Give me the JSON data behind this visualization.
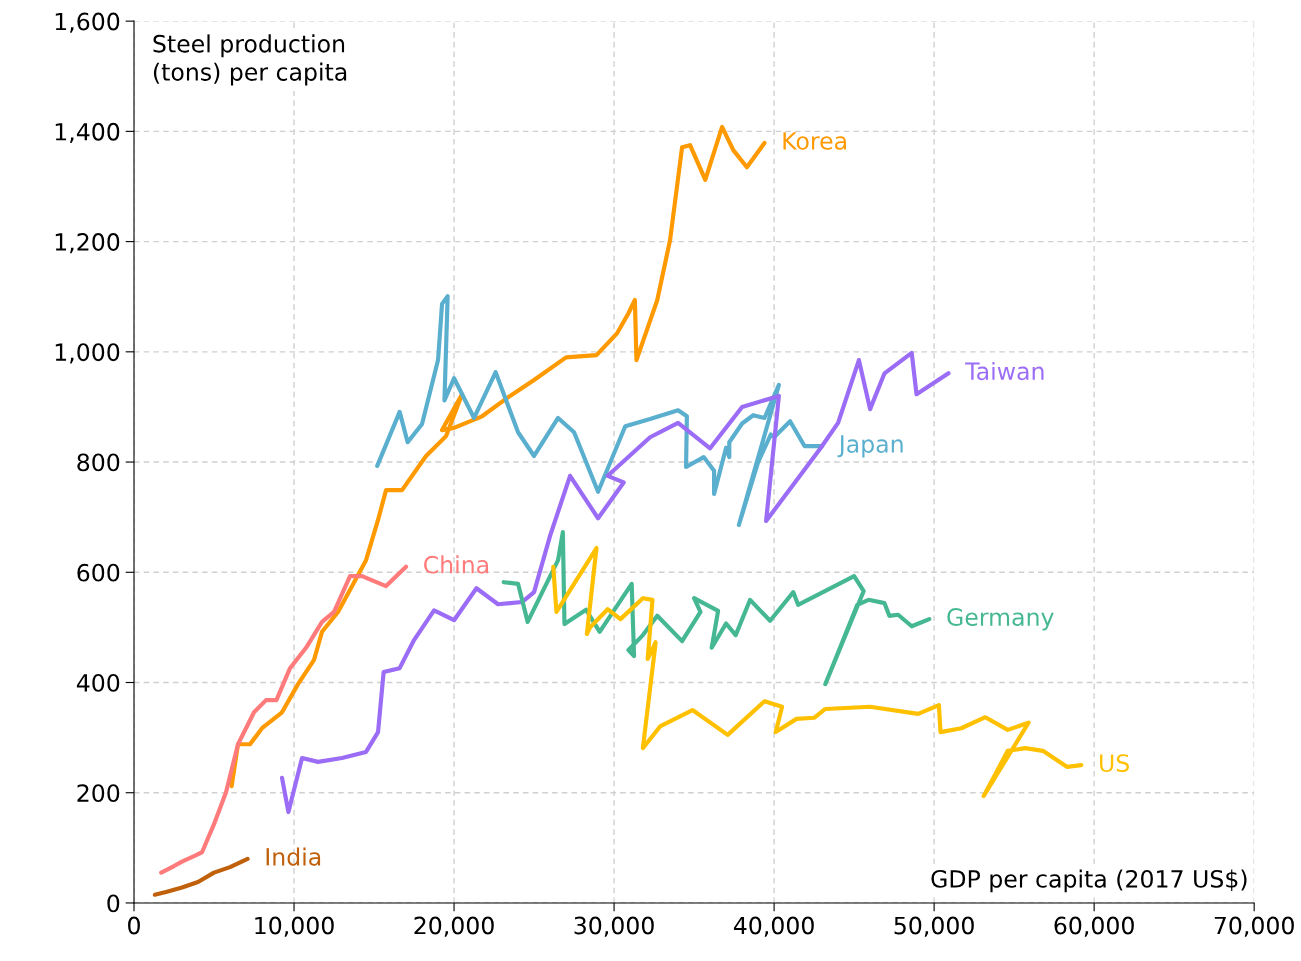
{
  "chart_data": {
    "type": "line",
    "xlabel": "GDP per capita (2017 US$)",
    "ylabel": "Steel production\n(tons) per capita",
    "xlim": [
      0,
      70000
    ],
    "xticks": [
      {
        "value": 0,
        "label": "0"
      },
      {
        "value": 10000,
        "label": "10,000"
      },
      {
        "value": 20000,
        "label": "20,000"
      },
      {
        "value": 30000,
        "label": "30,000"
      },
      {
        "value": 40000,
        "label": "40,000"
      },
      {
        "value": 50000,
        "label": "50,000"
      },
      {
        "value": 60000,
        "label": "60,000"
      },
      {
        "value": 70000,
        "label": "70,000"
      }
    ],
    "ylim": [
      0,
      1600
    ],
    "yticks": [
      {
        "value": 0,
        "label": "0"
      },
      {
        "value": 200,
        "label": "200"
      },
      {
        "value": 400,
        "label": "400"
      },
      {
        "value": 600,
        "label": "600"
      },
      {
        "value": 800,
        "label": "800"
      },
      {
        "value": 1000,
        "label": "1,000"
      },
      {
        "value": 1200,
        "label": "1,200"
      },
      {
        "value": 1400,
        "label": "1,400"
      },
      {
        "value": 1600,
        "label": "1,600"
      }
    ],
    "grid": true,
    "series": [
      {
        "name": "Korea",
        "color": "#ff9900",
        "x": [
          6100,
          6500,
          7250,
          8000,
          9250,
          10250,
          11250,
          11750,
          12750,
          14500,
          15250,
          15750,
          16750,
          18250,
          19500,
          20500,
          19250,
          20000,
          21750,
          23500,
          25000,
          27000,
          28900,
          30200,
          30900,
          31300,
          31400,
          32700,
          33500,
          34250,
          34750,
          35700,
          36750,
          37450,
          38300,
          39400
        ],
        "values": [
          212,
          288,
          288,
          317,
          346,
          397,
          441,
          492,
          528,
          622,
          695,
          749,
          749,
          811,
          847,
          923,
          858,
          862,
          883,
          920,
          949,
          990,
          994,
          1034,
          1070,
          1094,
          985,
          1094,
          1203,
          1371,
          1375,
          1312,
          1408,
          1366,
          1335,
          1379
        ]
      },
      {
        "name": "Japan",
        "color": "#5aafcf",
        "x": [
          15200,
          16600,
          17100,
          18000,
          19000,
          19250,
          19600,
          19400,
          20000,
          21250,
          22600,
          24000,
          25000,
          26500,
          27500,
          29000,
          30700,
          32250,
          34000,
          34550,
          34500,
          35600,
          36250,
          36250,
          37000,
          37200,
          37200,
          38000,
          38700,
          39400,
          40300,
          37800,
          39000,
          39800,
          40000,
          41000,
          41900,
          43000
        ],
        "values": [
          793,
          891,
          836,
          869,
          985,
          1087,
          1101,
          912,
          952,
          880,
          963,
          854,
          811,
          880,
          854,
          746,
          865,
          878,
          894,
          883,
          791,
          809,
          784,
          742,
          826,
          809,
          836,
          870,
          885,
          880,
          940,
          686,
          800,
          850,
          845,
          874,
          829,
          829
        ]
      },
      {
        "name": "Taiwan",
        "color": "#9b6cf5",
        "x": [
          9250,
          9650,
          10500,
          11500,
          13000,
          14500,
          15250,
          15600,
          16600,
          17500,
          18750,
          20000,
          21400,
          22750,
          24250,
          25000,
          26000,
          27250,
          29000,
          30600,
          29600,
          32250,
          34000,
          36000,
          38000,
          40300,
          39500,
          42900,
          44000,
          45300,
          46000,
          46900,
          48600,
          48900,
          50900
        ],
        "values": [
          227,
          165,
          263,
          256,
          263,
          274,
          310,
          419,
          426,
          477,
          531,
          513,
          571,
          542,
          546,
          564,
          666,
          775,
          698,
          763,
          775,
          845,
          871,
          825,
          900,
          920,
          693,
          825,
          871,
          985,
          896,
          961,
          998,
          923,
          961
        ]
      },
      {
        "name": "China",
        "color": "#ff7b7b",
        "x": [
          1700,
          2500,
          3000,
          3750,
          4250,
          5000,
          5750,
          6500,
          7500,
          8250,
          8900,
          9750,
          10750,
          11750,
          12500,
          13500,
          14250,
          15750,
          17000
        ],
        "values": [
          55,
          67,
          75,
          85,
          92,
          143,
          201,
          288,
          346,
          368,
          368,
          426,
          463,
          510,
          528,
          593,
          593,
          575,
          610
        ]
      },
      {
        "name": "Germany",
        "color": "#45b893",
        "x": [
          23100,
          24000,
          24600,
          26500,
          26800,
          26900,
          28250,
          29100,
          31100,
          31250,
          30900,
          31800,
          32700,
          34250,
          35400,
          35000,
          36500,
          36100,
          37000,
          37600,
          38500,
          39750,
          41200,
          41500,
          45000,
          45600,
          43200,
          45200,
          45900,
          46900,
          47200,
          47750,
          48600,
          49700
        ],
        "values": [
          582,
          579,
          510,
          622,
          673,
          506,
          532,
          492,
          579,
          448,
          459,
          486,
          521,
          475,
          528,
          553,
          530,
          463,
          507,
          486,
          550,
          512,
          564,
          541,
          593,
          566,
          397,
          541,
          550,
          544,
          521,
          523,
          502,
          515
        ]
      },
      {
        "name": "US",
        "color": "#ffc000",
        "x": [
          26200,
          26400,
          28900,
          28300,
          28500,
          29600,
          30400,
          31800,
          32400,
          32100,
          32600,
          31800,
          32900,
          34900,
          37100,
          39400,
          40500,
          40100,
          41400,
          42500,
          43200,
          46000,
          49000,
          50300,
          50400,
          51700,
          53200,
          54600,
          55900,
          53100,
          54600,
          55700,
          56800,
          58300,
          59200
        ],
        "values": [
          610,
          528,
          644,
          488,
          500,
          533,
          515,
          553,
          550,
          443,
          473,
          281,
          321,
          350,
          305,
          366,
          356,
          310,
          334,
          336,
          352,
          356,
          343,
          359,
          310,
          317,
          337,
          314,
          327,
          194,
          276,
          281,
          276,
          247,
          250
        ]
      },
      {
        "name": "India",
        "color": "#c0600a",
        "x": [
          1300,
          2000,
          3000,
          4000,
          5000,
          6000,
          7100
        ],
        "values": [
          15,
          20,
          28,
          38,
          55,
          65,
          80
        ]
      }
    ]
  }
}
